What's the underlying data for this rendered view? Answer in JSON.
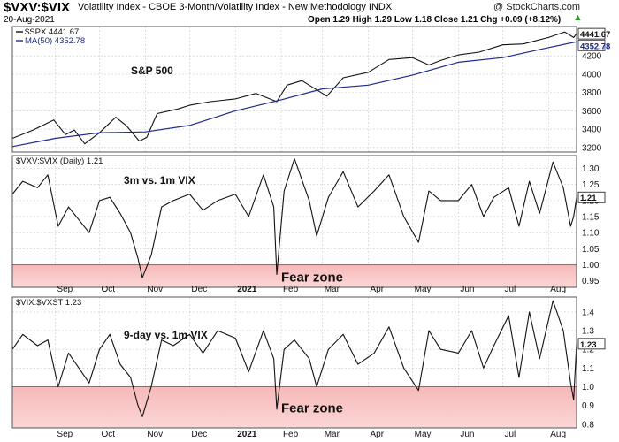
{
  "header": {
    "symbol": "$VXV:$VIX",
    "description": "Volatility Index - CBOE 3-Month/Volatility Index - New Methodology INDX",
    "date": "20-Aug-2021",
    "ohlc": "Open 1.29 High 1.29 Low 1.18 Close 1.21 Chg +0.09 (+8.12%)",
    "credit": "@ StockCharts.com",
    "up_arrow_color": "#2a9a2a"
  },
  "chart_data": [
    {
      "type": "line",
      "panel": "S&P 500 (bar chart) with MA(50)",
      "legend": [
        "$SPX 4441.67",
        "MA(50) 4352.78"
      ],
      "annotation": "S&P 500",
      "x_labels": [
        "Sep",
        "Oct",
        "Nov",
        "Dec",
        "2021",
        "Feb",
        "Mar",
        "Apr",
        "May",
        "Jun",
        "Jul",
        "Aug"
      ],
      "y_ticks": [
        "3200",
        "3400",
        "3600",
        "3800",
        "4000",
        "4200"
      ],
      "ylim": [
        3150,
        4520
      ],
      "series": [
        {
          "name": "$SPX",
          "x": [
            "2020-08-03",
            "2020-08-17",
            "2020-08-31",
            "2020-09-08",
            "2020-09-14",
            "2020-09-21",
            "2020-10-01",
            "2020-10-12",
            "2020-10-19",
            "2020-10-28",
            "2020-11-02",
            "2020-11-09",
            "2020-11-23",
            "2020-12-01",
            "2020-12-15",
            "2021-01-01",
            "2021-01-15",
            "2021-01-29",
            "2021-02-05",
            "2021-02-15",
            "2021-03-04",
            "2021-03-15",
            "2021-04-01",
            "2021-04-15",
            "2021-05-01",
            "2021-05-12",
            "2021-05-20",
            "2021-06-01",
            "2021-06-15",
            "2021-07-01",
            "2021-07-15",
            "2021-08-01",
            "2021-08-12",
            "2021-08-18",
            "2021-08-20"
          ],
          "values": [
            3300,
            3390,
            3500,
            3340,
            3390,
            3240,
            3360,
            3530,
            3440,
            3270,
            3310,
            3570,
            3620,
            3660,
            3700,
            3730,
            3790,
            3700,
            3880,
            3930,
            3760,
            3960,
            4020,
            4160,
            4180,
            4100,
            4150,
            4210,
            4240,
            4320,
            4330,
            4400,
            4460,
            4400,
            4441.67
          ]
        },
        {
          "name": "MA(50)",
          "x": [
            "2020-08-03",
            "2020-09-01",
            "2020-10-01",
            "2020-11-01",
            "2020-12-01",
            "2021-01-01",
            "2021-02-01",
            "2021-03-01",
            "2021-04-01",
            "2021-05-01",
            "2021-06-01",
            "2021-07-01",
            "2021-08-01",
            "2021-08-20"
          ],
          "values": [
            3210,
            3300,
            3360,
            3370,
            3440,
            3600,
            3720,
            3840,
            3880,
            3990,
            4130,
            4180,
            4290,
            4352.78
          ]
        }
      ]
    },
    {
      "type": "line",
      "panel": "$VXV:$VIX (Daily)",
      "legend": [
        "$VXV:$VIX (Daily) 1.21"
      ],
      "annotation": "3m vs. 1m VIX",
      "zone_label": "Fear zone",
      "zone_range": [
        0.93,
        1.0
      ],
      "x_labels": [
        "Sep",
        "Oct",
        "Nov",
        "Dec",
        "2021",
        "Feb",
        "Mar",
        "Apr",
        "May",
        "Jun",
        "Jul",
        "Aug"
      ],
      "y_ticks": [
        "0.95",
        "1.00",
        "1.05",
        "1.10",
        "1.15",
        "1.20",
        "1.25",
        "1.30"
      ],
      "ylim": [
        0.93,
        1.34
      ],
      "series": [
        {
          "name": "$VXV:$VIX",
          "x": [
            "2020-08-03",
            "2020-08-10",
            "2020-08-20",
            "2020-08-27",
            "2020-09-03",
            "2020-09-10",
            "2020-09-17",
            "2020-09-24",
            "2020-10-01",
            "2020-10-08",
            "2020-10-15",
            "2020-10-22",
            "2020-10-27",
            "2020-10-30",
            "2020-11-05",
            "2020-11-12",
            "2020-11-20",
            "2020-12-01",
            "2020-12-10",
            "2020-12-20",
            "2021-01-01",
            "2021-01-10",
            "2021-01-20",
            "2021-01-27",
            "2021-01-29",
            "2021-02-03",
            "2021-02-10",
            "2021-02-20",
            "2021-02-25",
            "2021-03-05",
            "2021-03-15",
            "2021-03-25",
            "2021-04-05",
            "2021-04-15",
            "2021-04-25",
            "2021-05-05",
            "2021-05-12",
            "2021-05-20",
            "2021-06-01",
            "2021-06-10",
            "2021-06-18",
            "2021-06-25",
            "2021-07-05",
            "2021-07-12",
            "2021-07-19",
            "2021-07-26",
            "2021-08-04",
            "2021-08-11",
            "2021-08-16",
            "2021-08-18",
            "2021-08-20"
          ],
          "values": [
            1.22,
            1.26,
            1.24,
            1.28,
            1.12,
            1.18,
            1.14,
            1.1,
            1.2,
            1.21,
            1.16,
            1.1,
            1.02,
            0.96,
            1.03,
            1.18,
            1.2,
            1.22,
            1.17,
            1.2,
            1.22,
            1.15,
            1.28,
            1.18,
            0.97,
            1.23,
            1.33,
            1.2,
            1.09,
            1.21,
            1.29,
            1.18,
            1.23,
            1.28,
            1.15,
            1.07,
            1.23,
            1.2,
            1.2,
            1.25,
            1.15,
            1.21,
            1.24,
            1.12,
            1.26,
            1.16,
            1.32,
            1.24,
            1.12,
            1.15,
            1.21
          ]
        }
      ]
    },
    {
      "type": "line",
      "panel": "$VIX:$VXST",
      "legend": [
        "$VIX:$VXST 1.23"
      ],
      "annotation": "9-day vs. 1m VIX",
      "zone_label": "Fear zone",
      "zone_range": [
        0.78,
        1.0
      ],
      "x_labels": [
        "Sep",
        "Oct",
        "Nov",
        "Dec",
        "2021",
        "Feb",
        "Mar",
        "Apr",
        "May",
        "Jun",
        "Jul",
        "Aug"
      ],
      "y_ticks": [
        "0.8",
        "0.9",
        "1.0",
        "1.1",
        "1.2",
        "1.3",
        "1.4"
      ],
      "ylim": [
        0.78,
        1.48
      ],
      "series": [
        {
          "name": "$VIX:$VXST",
          "x": [
            "2020-08-03",
            "2020-08-10",
            "2020-08-20",
            "2020-08-27",
            "2020-09-03",
            "2020-09-10",
            "2020-09-17",
            "2020-09-24",
            "2020-10-01",
            "2020-10-08",
            "2020-10-15",
            "2020-10-22",
            "2020-10-27",
            "2020-10-30",
            "2020-11-05",
            "2020-11-12",
            "2020-11-20",
            "2020-12-01",
            "2020-12-10",
            "2020-12-20",
            "2021-01-01",
            "2021-01-10",
            "2021-01-20",
            "2021-01-27",
            "2021-01-29",
            "2021-02-03",
            "2021-02-10",
            "2021-02-20",
            "2021-02-25",
            "2021-03-05",
            "2021-03-15",
            "2021-03-25",
            "2021-04-05",
            "2021-04-15",
            "2021-04-25",
            "2021-05-05",
            "2021-05-12",
            "2021-05-20",
            "2021-06-01",
            "2021-06-10",
            "2021-06-18",
            "2021-06-25",
            "2021-07-05",
            "2021-07-12",
            "2021-07-19",
            "2021-07-26",
            "2021-08-04",
            "2021-08-11",
            "2021-08-16",
            "2021-08-18",
            "2021-08-20"
          ],
          "values": [
            1.2,
            1.28,
            1.22,
            1.25,
            1.0,
            1.18,
            1.1,
            1.02,
            1.2,
            1.28,
            1.12,
            1.05,
            0.9,
            0.84,
            1.0,
            1.25,
            1.22,
            1.28,
            1.18,
            1.3,
            1.26,
            1.08,
            1.3,
            1.15,
            0.88,
            1.2,
            1.25,
            1.15,
            1.0,
            1.2,
            1.28,
            1.12,
            1.18,
            1.32,
            1.1,
            0.98,
            1.3,
            1.2,
            1.18,
            1.3,
            1.1,
            1.22,
            1.38,
            1.05,
            1.4,
            1.15,
            1.46,
            1.3,
            1.02,
            0.93,
            1.23
          ]
        }
      ]
    }
  ]
}
